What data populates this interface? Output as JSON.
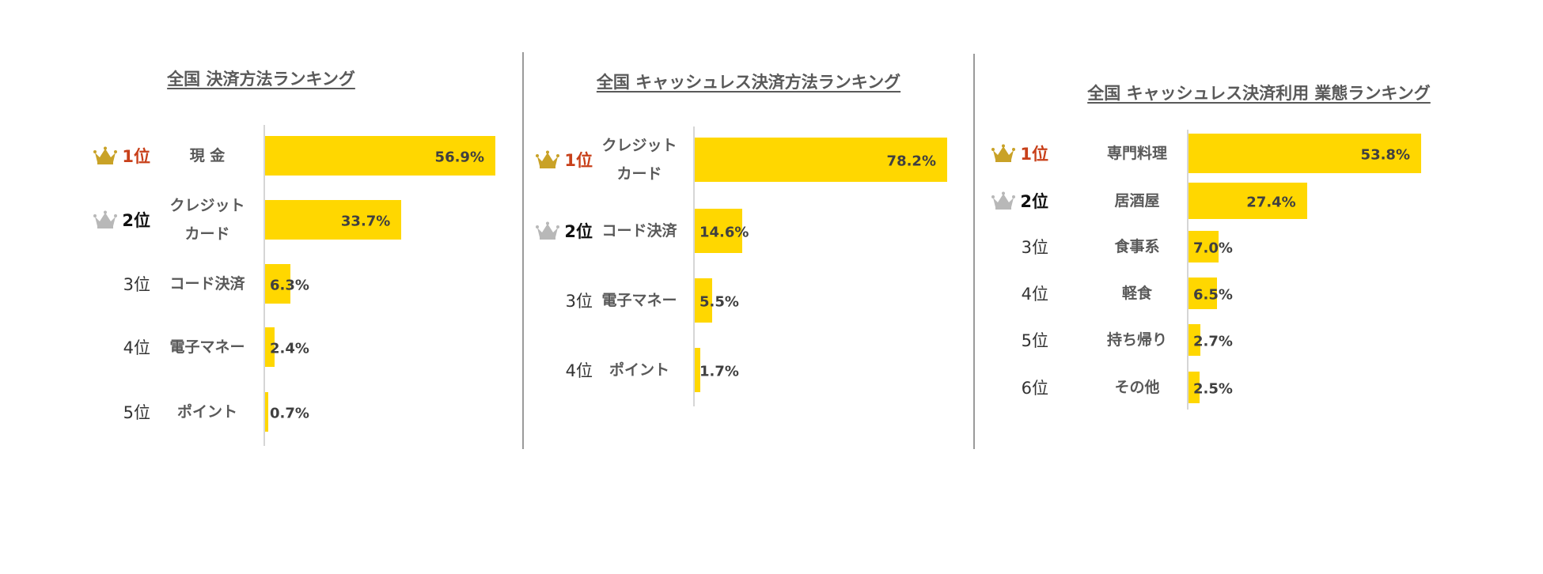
{
  "colors": {
    "bar": "#ffd700",
    "crown_gold": "#c9a227",
    "crown_silver": "#b8b8b8",
    "rank1": "#c8401a",
    "text": "#595959"
  },
  "chart_data": [
    {
      "type": "bar",
      "orientation": "horizontal",
      "title": "全国 決済方法ランキング",
      "ranks": [
        "1位",
        "2位",
        "3位",
        "4位",
        "5位"
      ],
      "categories": [
        "現 金",
        "クレジット\nカード",
        "コード決済",
        "電子マネー",
        "ポイント"
      ],
      "values": [
        56.9,
        33.7,
        6.3,
        2.4,
        0.7
      ],
      "value_labels": [
        "56.9%",
        "33.7%",
        "6.3%",
        "2.4%",
        "0.7%"
      ],
      "xlim": [
        0,
        56.9
      ]
    },
    {
      "type": "bar",
      "orientation": "horizontal",
      "title": "全国 キャッシュレス決済方法ランキング",
      "ranks": [
        "1位",
        "2位",
        "3位",
        "4位"
      ],
      "categories": [
        "クレジット\nカード",
        "コード決済",
        "電子マネー",
        "ポイント"
      ],
      "values": [
        78.2,
        14.6,
        5.5,
        1.7
      ],
      "value_labels": [
        "78.2%",
        "14.6%",
        "5.5%",
        "1.7%"
      ],
      "xlim": [
        0,
        78.2
      ]
    },
    {
      "type": "bar",
      "orientation": "horizontal",
      "title": "全国 キャッシュレス決済利用 業態ランキング",
      "ranks": [
        "1位",
        "2位",
        "3位",
        "4位",
        "5位",
        "6位"
      ],
      "categories": [
        "専門料理",
        "居酒屋",
        "食事系",
        "軽食",
        "持ち帰り",
        "その他"
      ],
      "values": [
        53.8,
        27.4,
        7.0,
        6.5,
        2.7,
        2.5
      ],
      "value_labels": [
        "53.8%",
        "27.4%",
        "7.0%",
        "6.5%",
        "2.7%",
        "2.5%"
      ],
      "xlim": [
        0,
        53.8
      ]
    }
  ]
}
